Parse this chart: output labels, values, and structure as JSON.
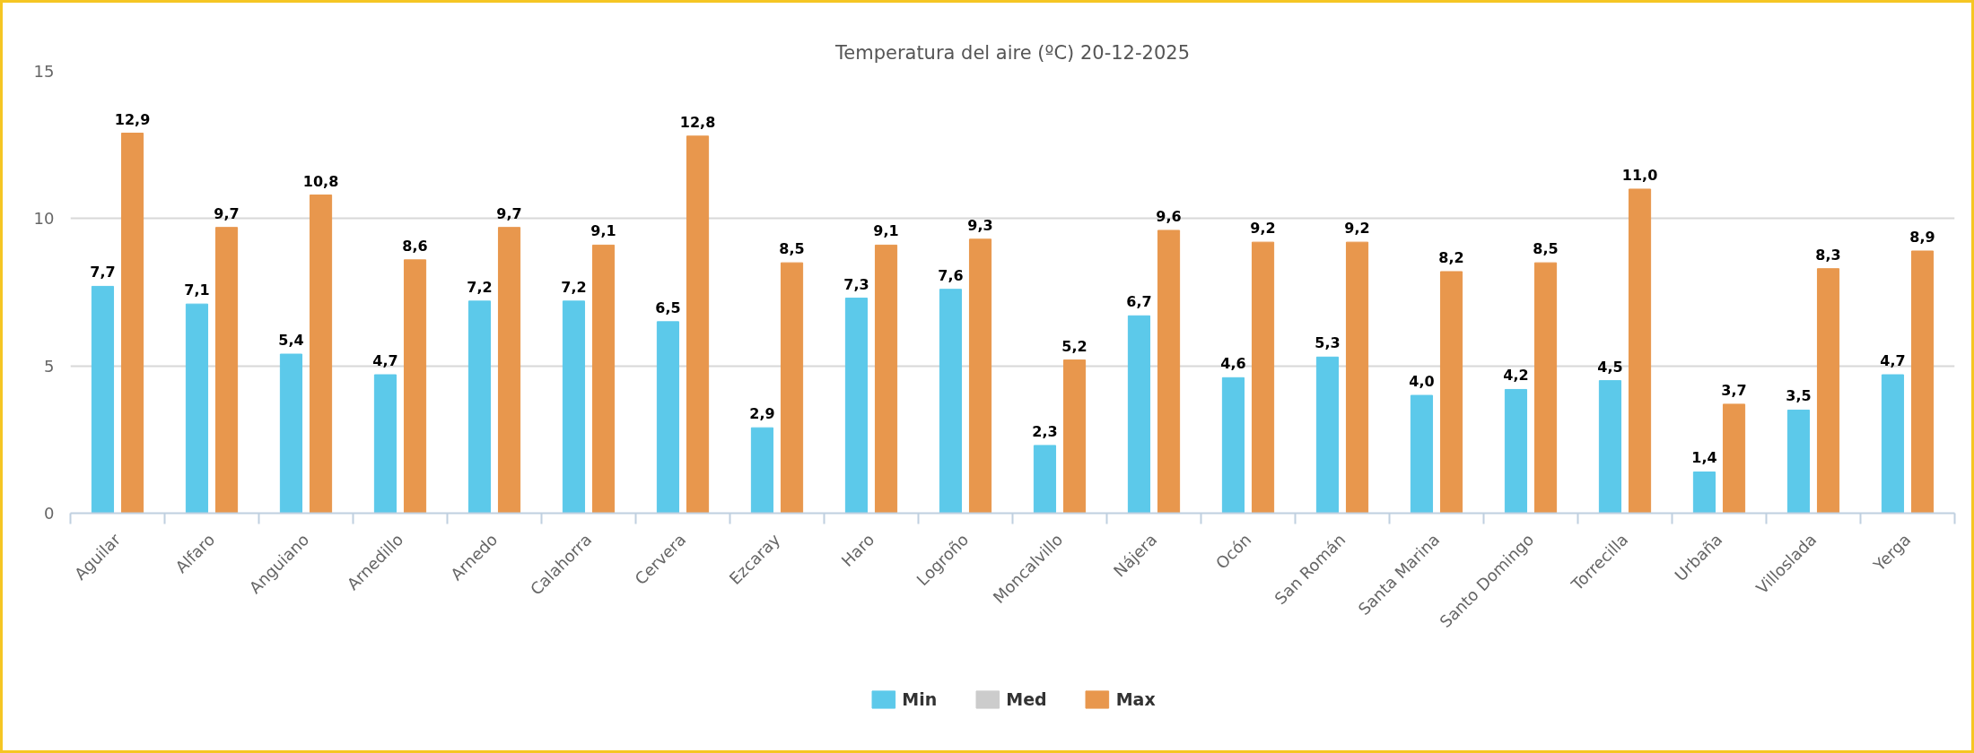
{
  "chart_data": {
    "type": "bar",
    "title": "Temperatura del aire (ºC) 20-12-2025",
    "categories": [
      "Aguilar",
      "Alfaro",
      "Anguiano",
      "Arnedillo",
      "Arnedo",
      "Calahorra",
      "Cervera",
      "Ezcaray",
      "Haro",
      "Logroño",
      "Moncalvillo",
      "Nájera",
      "Ocón",
      "San Román",
      "Santa Marina",
      "Santo Domingo",
      "Torrecilla",
      "Urbaña",
      "Villoslada",
      "Yerga"
    ],
    "ylim": [
      0,
      15
    ],
    "yticks": [
      0,
      5,
      10,
      15
    ],
    "grid": "y",
    "legend": "bottom",
    "series": [
      {
        "name": "Min",
        "color": "#5cc9ea",
        "values": [
          7.7,
          7.1,
          5.4,
          4.7,
          7.2,
          7.2,
          6.5,
          2.9,
          7.3,
          7.6,
          2.3,
          6.7,
          4.6,
          5.3,
          4.0,
          4.2,
          4.5,
          1.4,
          3.5,
          4.7
        ],
        "value_labels": [
          "7,7",
          "7,1",
          "5,4",
          "4,7",
          "7,2",
          "7,2",
          "6,5",
          "2,9",
          "7,3",
          "7,6",
          "2,3",
          "6,7",
          "4,6",
          "5,3",
          "4,0",
          "4,2",
          "4,5",
          "1,4",
          "3,5",
          "4,7"
        ]
      },
      {
        "name": "Med",
        "color": "#cccccc",
        "values": [
          null,
          null,
          null,
          null,
          null,
          null,
          null,
          null,
          null,
          null,
          null,
          null,
          null,
          null,
          null,
          null,
          null,
          null,
          null,
          null
        ]
      },
      {
        "name": "Max",
        "color": "#e8974d",
        "values": [
          12.9,
          9.7,
          10.8,
          8.6,
          9.7,
          9.1,
          12.8,
          8.5,
          9.1,
          9.3,
          5.2,
          9.6,
          9.2,
          9.2,
          8.2,
          8.5,
          11.0,
          3.7,
          8.3,
          8.9
        ],
        "value_labels": [
          "12,9",
          "9,7",
          "10,8",
          "8,6",
          "9,7",
          "9,1",
          "12,8",
          "8,5",
          "9,1",
          "9,3",
          "5,2",
          "9,6",
          "9,2",
          "9,2",
          "8,2",
          "8,5",
          "11,0",
          "3,7",
          "8,3",
          "8,9"
        ]
      }
    ]
  }
}
